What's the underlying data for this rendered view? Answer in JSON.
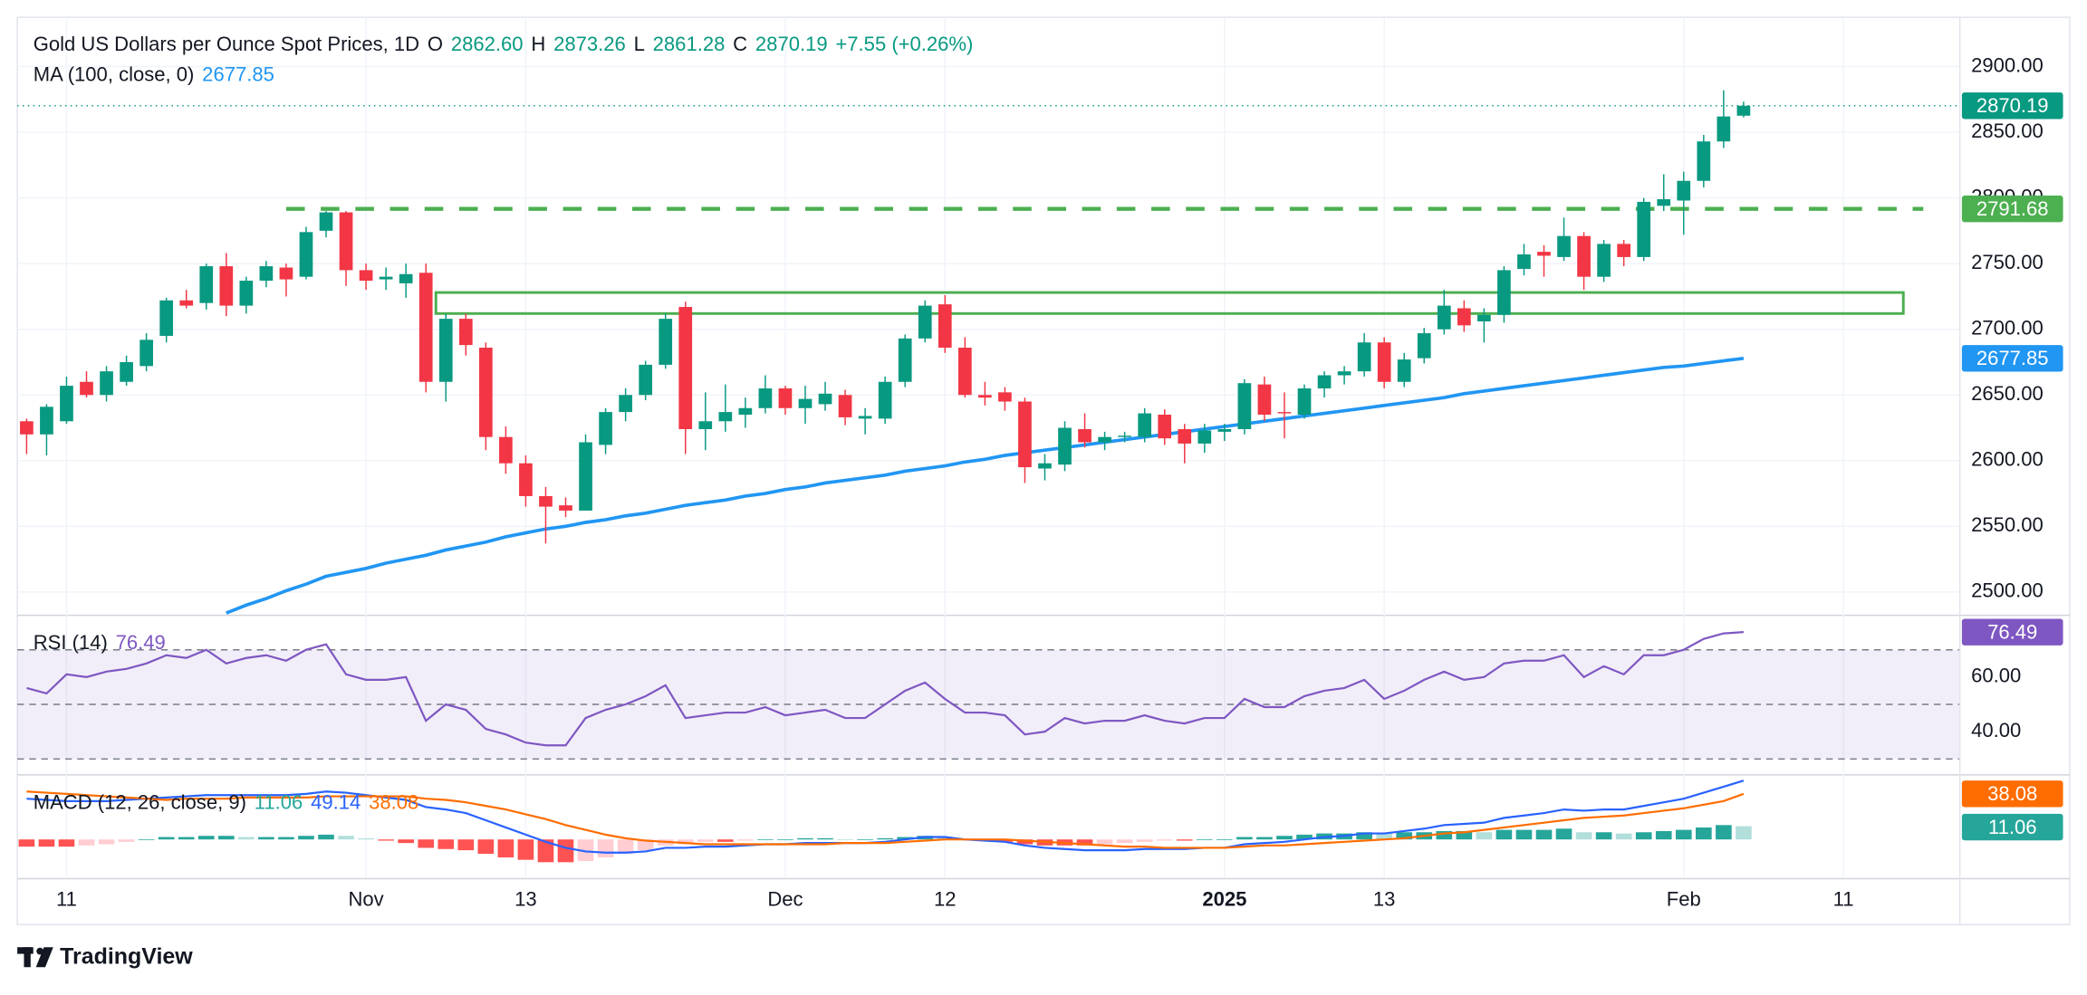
{
  "chart_data": {
    "type": "candlestick",
    "title": "Gold US Dollars per Ounce Spot Prices, 1D",
    "header_fields": [
      {
        "key": "O",
        "label": "2862.60"
      },
      {
        "key": "H",
        "label": "2873.26"
      },
      {
        "key": "L",
        "label": "2861.28"
      },
      {
        "key": "C",
        "label": "2870.19"
      }
    ],
    "change": "+7.55 (+0.26%)",
    "up_color": "#089981",
    "down_color": "#f23645",
    "grid": true,
    "categories": [
      null,
      null,
      "11",
      null,
      null,
      null,
      null,
      null,
      null,
      null,
      null,
      null,
      null,
      null,
      null,
      null,
      null,
      "Nov",
      null,
      null,
      null,
      null,
      null,
      null,
      null,
      "13",
      null,
      null,
      null,
      null,
      null,
      null,
      null,
      null,
      null,
      null,
      null,
      null,
      "Dec",
      null,
      null,
      null,
      null,
      null,
      null,
      null,
      "12",
      null,
      null,
      null,
      null,
      null,
      null,
      null,
      null,
      null,
      null,
      null,
      null,
      null,
      "2025",
      null,
      null,
      null,
      null,
      null,
      null,
      null,
      "13",
      null,
      null,
      null,
      null,
      null,
      null,
      null,
      null,
      null,
      null,
      null,
      null,
      null,
      null,
      "Feb",
      null,
      null,
      null,
      null,
      null,
      null,
      null,
      "11",
      null,
      null,
      null,
      null,
      null
    ],
    "open": [
      2630,
      2620,
      2630,
      2660,
      2650,
      2660,
      2672,
      2695,
      2722,
      2720,
      2748,
      2718,
      2737,
      2747,
      2740,
      2775,
      2789,
      2745,
      2738,
      2735,
      2743,
      2660,
      2708,
      2686,
      2618,
      2598,
      2573,
      2566,
      2562,
      2612,
      2637,
      2650,
      2673,
      2717,
      2624,
      2630,
      2635,
      2640,
      2655,
      2640,
      2643,
      2650,
      2632,
      2632,
      2660,
      2693,
      2719,
      2686,
      2650,
      2652,
      2645,
      2594,
      2597,
      2624,
      2614,
      2618,
      2618,
      2635,
      2624,
      2613,
      2622,
      2624,
      2658,
      2637,
      2635,
      2655,
      2665,
      2668,
      2690,
      2660,
      2678,
      2700,
      2716,
      2706,
      2711,
      2746,
      2759,
      2755,
      2771,
      2740,
      2765,
      2755,
      2794,
      2798,
      2813,
      2843,
      2862.6,
      null,
      null,
      null,
      null,
      null,
      null,
      null,
      null,
      null,
      null
    ],
    "high": [
      2632,
      2643,
      2664,
      2668,
      2672,
      2680,
      2697,
      2724,
      2730,
      2750,
      2758,
      2740,
      2752,
      2750,
      2778,
      2790,
      2790,
      2750,
      2747,
      2750,
      2750,
      2712,
      2712,
      2690,
      2626,
      2604,
      2580,
      2572,
      2620,
      2640,
      2655,
      2676,
      2712,
      2721,
      2652,
      2658,
      2648,
      2665,
      2657,
      2657,
      2660,
      2654,
      2640,
      2664,
      2696,
      2722,
      2726,
      2694,
      2660,
      2656,
      2648,
      2605,
      2630,
      2636,
      2622,
      2622,
      2640,
      2639,
      2628,
      2628,
      2628,
      2662,
      2664,
      2652,
      2658,
      2668,
      2672,
      2697,
      2694,
      2682,
      2701,
      2730,
      2722,
      2716,
      2748,
      2765,
      2764,
      2785,
      2774,
      2768,
      2768,
      2800,
      2818,
      2820,
      2848,
      2882,
      2873.26,
      null,
      null,
      null,
      null,
      null,
      null,
      null,
      null,
      null,
      null
    ],
    "low": [
      2605,
      2604,
      2628,
      2648,
      2645,
      2657,
      2668,
      2690,
      2716,
      2715,
      2710,
      2712,
      2732,
      2725,
      2738,
      2770,
      2733,
      2730,
      2730,
      2724,
      2652,
      2645,
      2680,
      2608,
      2590,
      2565,
      2537,
      2557,
      2562,
      2605,
      2630,
      2646,
      2670,
      2605,
      2608,
      2622,
      2625,
      2636,
      2635,
      2628,
      2638,
      2627,
      2620,
      2628,
      2656,
      2690,
      2682,
      2648,
      2642,
      2638,
      2583,
      2585,
      2592,
      2610,
      2608,
      2614,
      2614,
      2612,
      2598,
      2606,
      2615,
      2620,
      2630,
      2617,
      2632,
      2648,
      2658,
      2664,
      2655,
      2656,
      2674,
      2696,
      2698,
      2690,
      2705,
      2741,
      2740,
      2752,
      2730,
      2736,
      2748,
      2752,
      2790,
      2772,
      2808,
      2838,
      2861.28,
      null,
      null,
      null,
      null,
      null,
      null,
      null,
      null,
      null,
      null
    ],
    "close": [
      2620,
      2641,
      2657,
      2650,
      2668,
      2675,
      2692,
      2722,
      2718,
      2748,
      2718,
      2737,
      2748,
      2738,
      2774,
      2789,
      2745,
      2737,
      2740,
      2742,
      2660,
      2708,
      2688,
      2618,
      2598,
      2573,
      2565,
      2562,
      2614,
      2637,
      2650,
      2673,
      2708,
      2624,
      2630,
      2637,
      2640,
      2655,
      2640,
      2647,
      2651,
      2633,
      2634,
      2660,
      2693,
      2718,
      2686,
      2650,
      2648,
      2645,
      2595,
      2598,
      2625,
      2614,
      2618,
      2619,
      2636,
      2617,
      2613,
      2623,
      2624,
      2659,
      2635,
      2636,
      2655,
      2665,
      2668,
      2690,
      2660,
      2677,
      2697,
      2718,
      2703,
      2711,
      2745,
      2757,
      2756,
      2771,
      2740,
      2765,
      2755,
      2797,
      2799,
      2813,
      2843,
      2862,
      2870.19,
      null,
      null,
      null,
      null,
      null,
      null,
      null,
      null,
      null,
      null
    ],
    "ylim": [
      2482.8,
      2937.5
    ],
    "yticks": [
      {
        "value": 2500,
        "label": "2500.00"
      },
      {
        "value": 2550,
        "label": "2550.00"
      },
      {
        "value": 2600,
        "label": "2600.00"
      },
      {
        "value": 2650,
        "label": "2650.00"
      },
      {
        "value": 2700,
        "label": "2700.00"
      },
      {
        "value": 2750,
        "label": "2750.00"
      },
      {
        "value": 2800,
        "label": "2800.00"
      },
      {
        "value": 2850,
        "label": "2850.00"
      },
      {
        "value": 2900,
        "label": "2900.00"
      }
    ],
    "ma": {
      "name": "MA (100, close, 0)",
      "color": "#2196f3",
      "values": [
        null,
        null,
        null,
        null,
        null,
        null,
        null,
        null,
        null,
        null,
        2484,
        2490,
        2495,
        2501,
        2506,
        2512,
        2515,
        2518,
        2522,
        2525,
        2528,
        2532,
        2535,
        2538,
        2542,
        2545,
        2548,
        2550,
        2553,
        2555,
        2558,
        2560,
        2563,
        2566,
        2568,
        2570,
        2573,
        2575,
        2578,
        2580,
        2583,
        2585,
        2587,
        2589,
        2592,
        2594,
        2596,
        2599,
        2601,
        2604,
        2606,
        2608,
        2610,
        2612,
        2614,
        2616,
        2618,
        2620,
        2622,
        2624,
        2626,
        2628,
        2630,
        2632,
        2634,
        2636,
        2638,
        2640,
        2642,
        2644,
        2646,
        2648,
        2651,
        2653,
        2655,
        2657,
        2659,
        2661,
        2663,
        2665,
        2667,
        2669,
        2671,
        2672,
        2674,
        2676,
        2677.85,
        null,
        null,
        null,
        null,
        null,
        null,
        null,
        null,
        null,
        null
      ]
    },
    "resistance": {
      "value": 2791.68,
      "x_range": [
        13,
        95
      ],
      "color": "#4caf50"
    },
    "zone": {
      "x_range": [
        20.5,
        94
      ],
      "y_range": [
        2712,
        2728
      ],
      "color": "#4caf50"
    },
    "rsi": {
      "name": "RSI (14)",
      "color": "#7e57c2",
      "ylim": [
        24.4,
        82.4
      ],
      "yticks": [
        {
          "value": 40,
          "label": "40.00"
        },
        {
          "value": 60,
          "label": "60.00"
        }
      ],
      "levels": [
        30,
        50,
        70
      ],
      "band": [
        30,
        70
      ],
      "values": [
        56,
        54,
        61,
        60,
        62,
        63,
        65,
        68,
        67,
        70,
        65,
        67,
        68,
        66,
        70,
        72,
        61,
        59,
        59,
        60,
        44,
        50,
        48,
        41,
        39,
        36,
        35,
        35,
        45,
        48,
        50,
        53,
        57,
        45,
        46,
        47,
        47,
        49,
        46,
        47,
        48,
        45,
        45,
        50,
        55,
        58,
        52,
        47,
        47,
        46,
        39,
        40,
        45,
        43,
        44,
        44,
        46,
        44,
        43,
        45,
        45,
        52,
        49,
        49,
        53,
        55,
        56,
        59,
        52,
        55,
        59,
        62,
        59,
        60,
        65,
        66,
        66,
        68,
        60,
        64,
        61,
        68,
        68,
        70,
        74,
        76,
        76.49,
        null,
        null,
        null,
        null,
        null,
        null,
        null,
        null,
        null,
        null
      ]
    },
    "macd": {
      "name": "MACD (12, 26, close, 9)",
      "ylim": [
        -32.2,
        53.3
      ],
      "histogram": {
        "colors": [
          "#26a69a",
          "#b2dfdb",
          "#ff5252",
          "#ffcdd2"
        ],
        "values": [
          -6,
          -6,
          -6,
          -5,
          -4,
          -2,
          0,
          2,
          2,
          3,
          3,
          2,
          2,
          2,
          3,
          4,
          3,
          1,
          -1,
          -3,
          -7,
          -8,
          -9,
          -12,
          -15,
          -17,
          -19,
          -19,
          -18,
          -15,
          -12,
          -9,
          -5,
          -4,
          -2,
          -2,
          -1,
          0,
          0,
          1,
          1,
          0,
          0,
          1,
          2,
          3,
          2,
          0,
          -1,
          -2,
          -4,
          -5,
          -5,
          -5,
          -4,
          -3,
          -2,
          -1,
          -1,
          0,
          0,
          2,
          2,
          3,
          4,
          5,
          5,
          6,
          5,
          6,
          6,
          7,
          7,
          6,
          8,
          8,
          8,
          9,
          6,
          6,
          5,
          6,
          7,
          8,
          10,
          12,
          11.06,
          null,
          null,
          null,
          null,
          null,
          null,
          null,
          null,
          null,
          null
        ]
      },
      "line": {
        "color": "#2962ff",
        "values": [
          34,
          33,
          32,
          32,
          32,
          33,
          34,
          35,
          36,
          37,
          37,
          37,
          37,
          37,
          38,
          40,
          39,
          37,
          35,
          33,
          27,
          25,
          22,
          16,
          10,
          4,
          -2,
          -7,
          -10,
          -11,
          -11,
          -10,
          -7,
          -7,
          -6,
          -6,
          -5,
          -4,
          -4,
          -3,
          -3,
          -3,
          -3,
          -2,
          0,
          2,
          2,
          0,
          -1,
          -2,
          -5,
          -7,
          -8,
          -9,
          -9,
          -9,
          -8,
          -8,
          -8,
          -7,
          -7,
          -4,
          -3,
          -2,
          0,
          2,
          3,
          5,
          5,
          7,
          9,
          12,
          13,
          14,
          18,
          20,
          22,
          25,
          24,
          25,
          25,
          28,
          31,
          34,
          39,
          44,
          49.14,
          null,
          null,
          null,
          null,
          null,
          null,
          null,
          null,
          null,
          null
        ]
      },
      "signal": {
        "color": "#ff6d00",
        "values": [
          40,
          39,
          38,
          37,
          36,
          35,
          34,
          33,
          34,
          34,
          34,
          35,
          35,
          35,
          35,
          36,
          36,
          36,
          36,
          36,
          34,
          33,
          31,
          28,
          25,
          21,
          17,
          12,
          8,
          4,
          1,
          -1,
          -2,
          -3,
          -4,
          -4,
          -4,
          -4,
          -4,
          -4,
          -4,
          -3,
          -3,
          -3,
          -2,
          -1,
          0,
          0,
          0,
          0,
          -1,
          -2,
          -3,
          -4,
          -5,
          -6,
          -6,
          -7,
          -7,
          -7,
          -7,
          -6,
          -5,
          -5,
          -4,
          -3,
          -2,
          -1,
          0,
          1,
          3,
          5,
          6,
          8,
          10,
          12,
          14,
          16,
          18,
          19,
          20,
          22,
          24,
          26,
          29,
          32,
          38.08,
          null,
          null,
          null,
          null,
          null,
          null,
          null,
          null,
          null,
          null
        ]
      }
    }
  },
  "brand": "TradingView"
}
